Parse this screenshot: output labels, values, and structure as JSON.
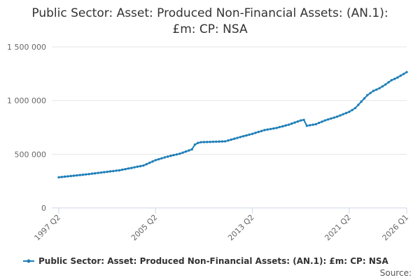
{
  "chart_data": {
    "type": "line",
    "title": "Public Sector: Asset: Produced Non-Financial Assets: (AN.1): £m: CP: NSA",
    "source": "Source:",
    "categories": [
      "1997 Q2",
      null,
      null,
      null,
      null,
      null,
      null,
      null,
      null,
      null,
      null,
      null,
      null,
      null,
      null,
      null,
      null,
      null,
      null,
      null,
      null,
      null,
      null,
      null,
      null,
      null,
      null,
      null,
      null,
      null,
      null,
      null,
      "2005 Q2",
      null,
      null,
      null,
      null,
      null,
      null,
      null,
      null,
      null,
      null,
      null,
      null,
      null,
      null,
      null,
      null,
      null,
      null,
      null,
      null,
      null,
      null,
      null,
      null,
      null,
      null,
      null,
      null,
      null,
      null,
      null,
      "2013 Q2",
      null,
      null,
      null,
      null,
      null,
      null,
      null,
      null,
      null,
      null,
      null,
      null,
      null,
      null,
      null,
      null,
      null,
      null,
      null,
      null,
      null,
      null,
      null,
      null,
      null,
      null,
      null,
      null,
      null,
      null,
      null,
      "2021 Q2",
      null,
      null,
      null,
      null,
      null,
      null,
      null,
      null,
      null,
      null,
      null,
      null,
      null,
      null,
      null,
      null,
      null,
      null,
      "2026 Q1"
    ],
    "series": [
      {
        "name": "Public Sector: Asset: Produced Non-Financial Assets: (AN.1): £m: CP: NSA",
        "color": "#1f7fb8",
        "values": [
          285000,
          288000,
          291000,
          294000,
          297000,
          300000,
          303000,
          306000,
          309000,
          312000,
          315000,
          319000,
          322000,
          326000,
          329000,
          333000,
          336000,
          340000,
          343000,
          347000,
          350000,
          356000,
          361000,
          367000,
          372000,
          378000,
          384000,
          389000,
          395000,
          407000,
          420000,
          432000,
          445000,
          453000,
          462000,
          470000,
          478000,
          485000,
          492000,
          498000,
          505000,
          515000,
          525000,
          535000,
          545000,
          590000,
          605000,
          612000,
          613000,
          614000,
          615000,
          616000,
          617000,
          618000,
          619000,
          620000,
          628000,
          636000,
          644000,
          652000,
          660000,
          668000,
          675000,
          683000,
          690000,
          699000,
          708000,
          716000,
          725000,
          730000,
          735000,
          740000,
          745000,
          753000,
          760000,
          768000,
          775000,
          785000,
          795000,
          805000,
          815000,
          820000,
          765000,
          770000,
          775000,
          780000,
          792000,
          803000,
          815000,
          824000,
          833000,
          841000,
          850000,
          861000,
          873000,
          884000,
          895000,
          912000,
          930000,
          960000,
          990000,
          1020000,
          1050000,
          1070000,
          1090000,
          1102000,
          1115000,
          1132000,
          1150000,
          1170000,
          1190000,
          1202000,
          1215000,
          1232000,
          1248000,
          1265000
        ]
      }
    ],
    "ylim": [
      0,
      1500000
    ],
    "yticks": [
      0,
      {
        "value": 500000,
        "label": "500 000"
      },
      {
        "value": 1000000,
        "label": "1 000 000"
      },
      {
        "value": 1500000,
        "label": "1 500 000"
      }
    ],
    "grid": true
  }
}
